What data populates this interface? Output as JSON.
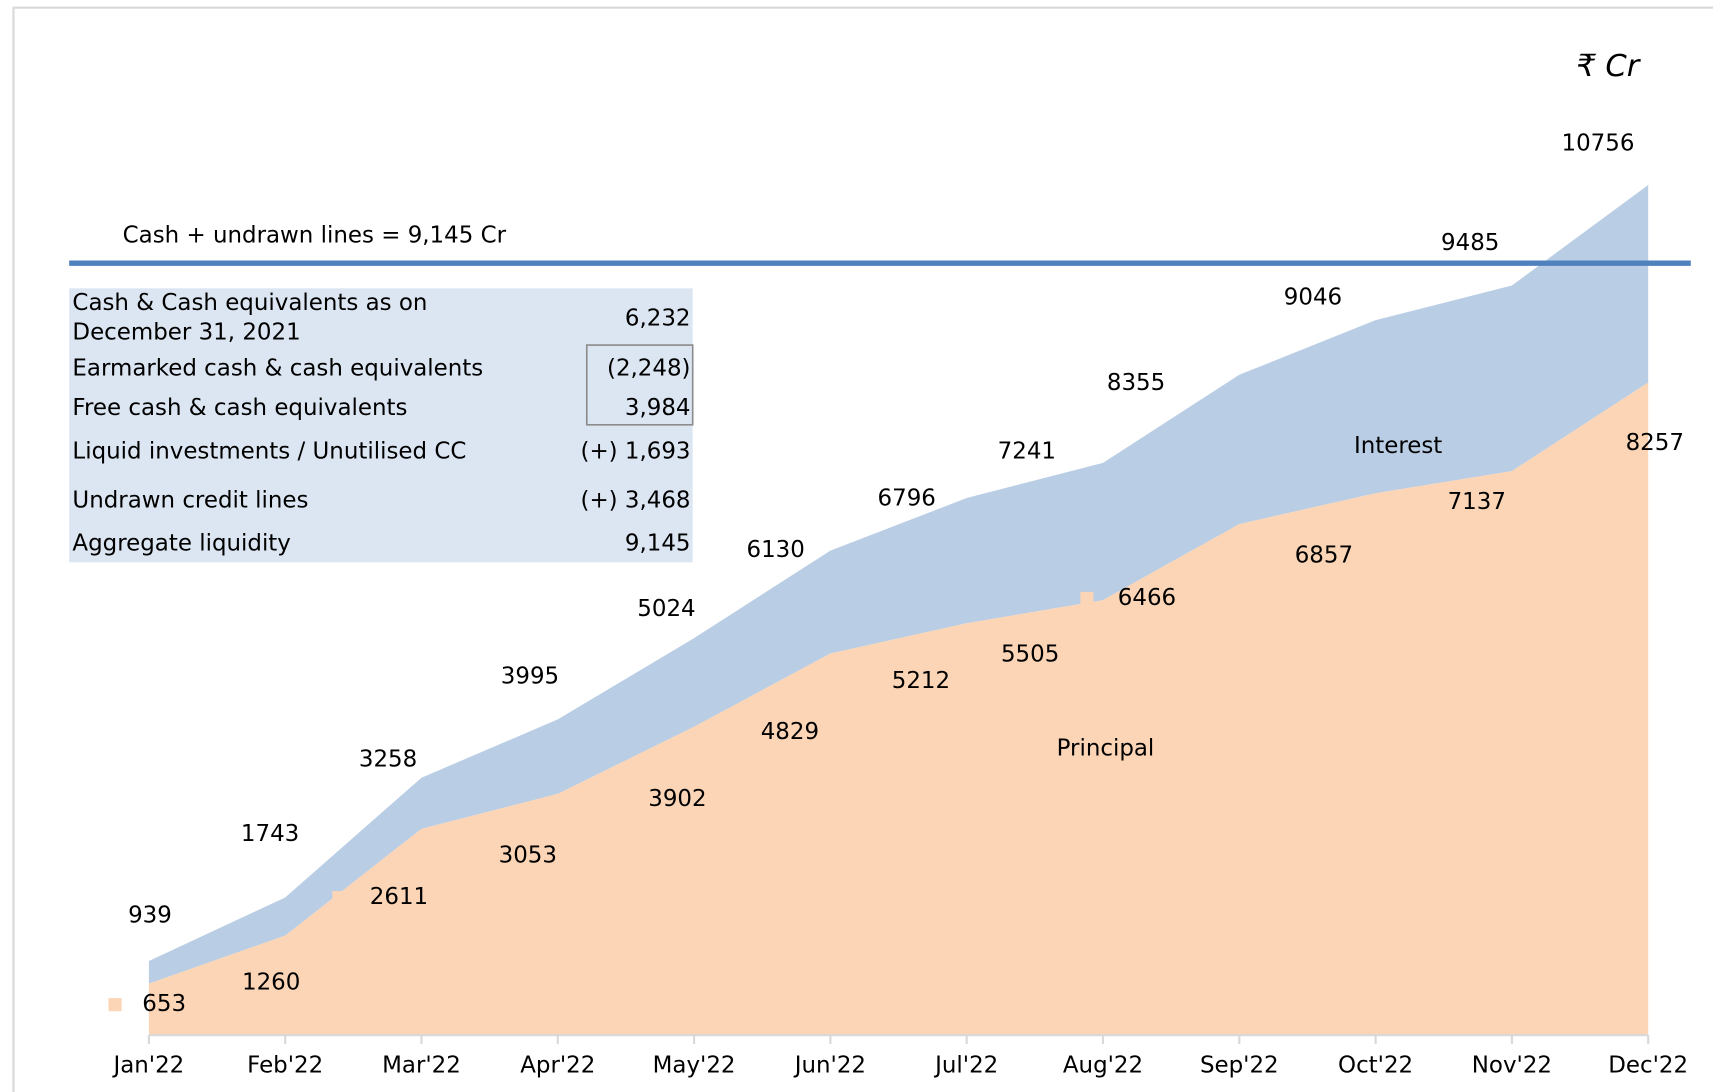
{
  "chart_data": {
    "type": "area",
    "unit": "₹ Cr",
    "categories": [
      "Jan'22",
      "Feb'22",
      "Mar'22",
      "Apr'22",
      "May'22",
      "Jun'22",
      "Jul'22",
      "Aug'22",
      "Sep'22",
      "Oct'22",
      "Nov'22",
      "Dec'22"
    ],
    "series": [
      {
        "name": "Principal",
        "color": "#fbd5b5",
        "values": [
          653,
          1260,
          2611,
          3053,
          3902,
          4829,
          5212,
          5505,
          6466,
          6857,
          7137,
          8257
        ]
      },
      {
        "name": "Interest",
        "color": "#b9cde5"
      }
    ],
    "totals": [
      939,
      1743,
      3258,
      3995,
      5024,
      6130,
      6796,
      7241,
      8355,
      9046,
      9485,
      10756
    ],
    "ylim": [
      0,
      13000
    ],
    "reference_line": {
      "label": "Cash + undrawn lines = 9,145 Cr",
      "color": "#4f81bd"
    },
    "table": {
      "rows": [
        [
          "Cash & Cash equivalents as on",
          "December 31, 2021",
          "6,232"
        ],
        [
          "Earmarked cash & cash equivalents",
          "(2,248)"
        ],
        [
          "Free cash & cash equivalents",
          "3,984"
        ],
        [
          "Liquid investments / Unutilised CC",
          "(+) 1,693"
        ],
        [
          "Undrawn credit lines",
          "(+) 3,468"
        ],
        [
          "Aggregate liquidity",
          "9,145"
        ]
      ]
    }
  }
}
